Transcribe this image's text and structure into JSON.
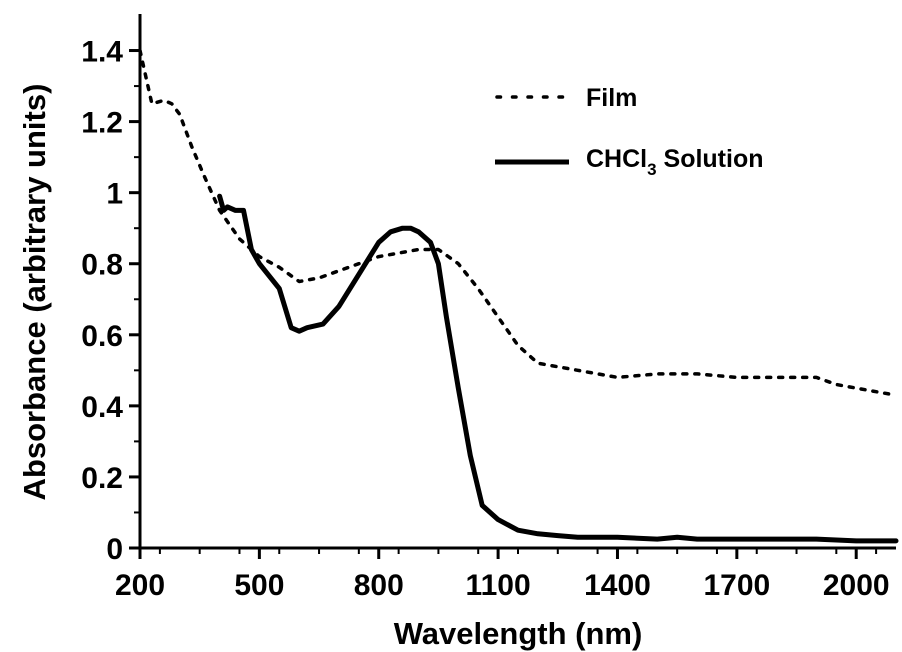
{
  "chart_data": {
    "type": "line",
    "xlabel": "Wavelength (nm)",
    "ylabel": "Absorbance (arbitrary units)",
    "xlim": [
      200,
      2100
    ],
    "ylim": [
      0,
      1.5
    ],
    "x_ticks": [
      200,
      500,
      800,
      1100,
      1400,
      1700,
      2000
    ],
    "x_tick_labels": [
      "200",
      "500",
      "800",
      "1100",
      "1400",
      "1700",
      "2000"
    ],
    "y_ticks": [
      0,
      0.2,
      0.4,
      0.6,
      0.8,
      1,
      1.2,
      1.4
    ],
    "y_tick_labels": [
      "0",
      "0.2",
      "0.4",
      "0.6",
      "0.8",
      "1",
      "1.2",
      "1.4"
    ],
    "grid": false,
    "legend_position": "top-right",
    "series": [
      {
        "name": "Film",
        "style": "dotted",
        "color": "#000000",
        "x": [
          200,
          230,
          260,
          280,
          300,
          330,
          360,
          400,
          450,
          500,
          550,
          600,
          650,
          700,
          750,
          800,
          850,
          900,
          950,
          1000,
          1050,
          1100,
          1150,
          1200,
          1300,
          1400,
          1500,
          1600,
          1700,
          1800,
          1900,
          1950,
          2000,
          2050,
          2100
        ],
        "y": [
          1.4,
          1.25,
          1.26,
          1.25,
          1.22,
          1.13,
          1.05,
          0.95,
          0.87,
          0.82,
          0.79,
          0.75,
          0.76,
          0.78,
          0.8,
          0.82,
          0.83,
          0.84,
          0.84,
          0.8,
          0.73,
          0.65,
          0.57,
          0.52,
          0.5,
          0.48,
          0.49,
          0.49,
          0.48,
          0.48,
          0.48,
          0.46,
          0.45,
          0.44,
          0.43
        ]
      },
      {
        "name": "CHCl",
        "name_subscript": "3",
        "name_suffix": " Solution",
        "style": "solid",
        "color": "#000000",
        "x": [
          400,
          410,
          420,
          440,
          460,
          480,
          500,
          550,
          580,
          600,
          620,
          660,
          700,
          750,
          800,
          830,
          860,
          880,
          900,
          930,
          950,
          970,
          1000,
          1030,
          1060,
          1100,
          1150,
          1200,
          1250,
          1300,
          1400,
          1500,
          1550,
          1600,
          1700,
          1800,
          1900,
          2000,
          2100
        ],
        "y": [
          0.99,
          0.95,
          0.96,
          0.95,
          0.95,
          0.84,
          0.8,
          0.73,
          0.62,
          0.61,
          0.62,
          0.63,
          0.68,
          0.77,
          0.86,
          0.89,
          0.9,
          0.9,
          0.89,
          0.86,
          0.8,
          0.65,
          0.45,
          0.26,
          0.12,
          0.08,
          0.05,
          0.04,
          0.035,
          0.03,
          0.03,
          0.025,
          0.03,
          0.025,
          0.025,
          0.025,
          0.025,
          0.02,
          0.02
        ]
      }
    ]
  }
}
